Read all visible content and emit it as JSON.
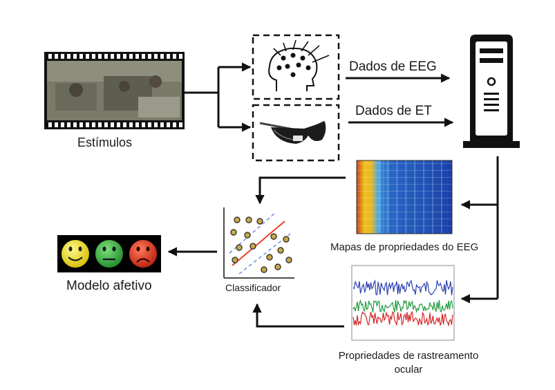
{
  "labels": {
    "stimuli": "Estímulos",
    "eeg_data": "Dados de EEG",
    "et_data": "Dados de ET",
    "eeg_maps": "Mapas de propriedades do EEG",
    "eye_tracking_props": "Propriedades de rastreamento ocular",
    "classifier": "Classificador",
    "affective_model": "Modelo afetivo"
  },
  "colors": {
    "arrow": "#111111",
    "emoji_happy": "#f2e614",
    "emoji_neutral": "#2fa23a",
    "emoji_sad": "#d8321e",
    "heatmap_hot": "#f0c020",
    "heatmap_cold": "#1b3fa6",
    "line_blue": "#2a3fb0",
    "line_green": "#1e9a3c",
    "line_red": "#d42222"
  },
  "icons": [
    "film-strip-icon",
    "eeg-head-icon",
    "eye-tracker-glasses-icon",
    "computer-tower-icon",
    "emoji-faces-icon",
    "svm-scatter-icon"
  ]
}
